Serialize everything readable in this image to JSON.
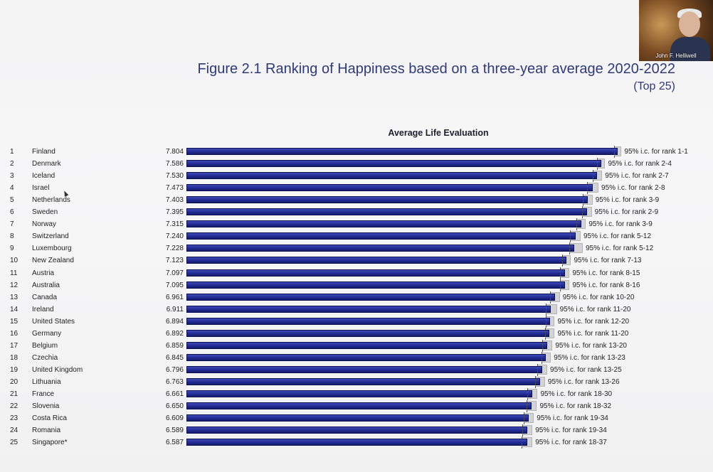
{
  "header": {
    "title": "Figure 2.1 Ranking of Happiness based on a three-year average 2020-2022",
    "subtitle": "(Top 25)"
  },
  "video": {
    "name": "John F. Helliwell"
  },
  "colors": {
    "bar": "#20298f",
    "ci_box": "#d3d3d6",
    "title": "#2f3a73"
  },
  "chart_data": {
    "type": "bar",
    "orientation": "horizontal",
    "xlabel": "Average Life Evaluation",
    "ranks": [
      "1",
      "2",
      "3",
      "4",
      "5",
      "6",
      "7",
      "8",
      "9",
      "10",
      "11",
      "12",
      "13",
      "14",
      "15",
      "16",
      "17",
      "18",
      "19",
      "20",
      "21",
      "22",
      "23",
      "24",
      "25"
    ],
    "categories": [
      "Finland",
      "Denmark",
      "Iceland",
      "Israel",
      "Netherlands",
      "Sweden",
      "Norway",
      "Switzerland",
      "Luxembourg",
      "New Zealand",
      "Austria",
      "Australia",
      "Canada",
      "Ireland",
      "United States",
      "Germany",
      "Belgium",
      "Czechia",
      "United Kingdom",
      "Lithuania",
      "France",
      "Slovenia",
      "Costa Rica",
      "Romania",
      "Singapore*"
    ],
    "values": [
      7.804,
      7.586,
      7.53,
      7.473,
      7.403,
      7.395,
      7.315,
      7.24,
      7.228,
      7.123,
      7.097,
      7.095,
      6.961,
      6.911,
      6.894,
      6.892,
      6.859,
      6.845,
      6.796,
      6.763,
      6.661,
      6.65,
      6.609,
      6.589,
      6.587
    ],
    "value_labels": [
      "7.804",
      "7.586",
      "7.530",
      "7.473",
      "7.403",
      "7.395",
      "7.315",
      "7.240",
      "7.228",
      "7.123",
      "7.097",
      "7.095",
      "6.961",
      "6.911",
      "6.894",
      "6.892",
      "6.859",
      "6.845",
      "6.796",
      "6.763",
      "6.661",
      "6.650",
      "6.609",
      "6.589",
      "6.587"
    ],
    "ci_labels": [
      "95% i.c. for rank 1-1",
      "95% i.c. for rank 2-4",
      "95% i.c. for rank 2-7",
      "95% i.c. for rank 2-8",
      "95% i.c. for rank 3-9",
      "95% i.c. for rank 2-9",
      "95% i.c. for rank 3-9",
      "95% i.c. for rank 5-12",
      "95% i.c. for rank 5-12",
      "95% i.c. for rank 7-13",
      "95% i.c. for rank 8-15",
      "95% i.c. for rank 8-16",
      "95% i.c. for rank 10-20",
      "95% i.c. for rank 11-20",
      "95% i.c. for rank 12-20",
      "95% i.c. for rank 11-20",
      "95% i.c. for rank 13-20",
      "95% i.c. for rank 13-23",
      "95% i.c. for rank 13-25",
      "95% i.c. for rank 13-26",
      "95% i.c. for rank 18-30",
      "95% i.c. for rank 18-32",
      "95% i.c. for rank 19-34",
      "95% i.c. for rank 19-34",
      "95% i.c. for rank 18-37"
    ],
    "ci_low": [
      7.76,
      7.53,
      7.47,
      7.4,
      7.34,
      7.33,
      7.25,
      7.17,
      7.16,
      7.06,
      7.03,
      7.03,
      6.9,
      6.84,
      6.84,
      6.83,
      6.79,
      6.78,
      6.73,
      6.7,
      6.59,
      6.58,
      6.54,
      6.52,
      6.51
    ],
    "ci_high": [
      7.86,
      7.64,
      7.6,
      7.55,
      7.47,
      7.46,
      7.38,
      7.31,
      7.34,
      7.18,
      7.16,
      7.16,
      7.03,
      6.99,
      6.96,
      6.96,
      6.93,
      6.91,
      6.86,
      6.83,
      6.73,
      6.72,
      6.68,
      6.66,
      6.66
    ],
    "xlim": [
      2.0,
      8.0
    ],
    "grid": false
  }
}
